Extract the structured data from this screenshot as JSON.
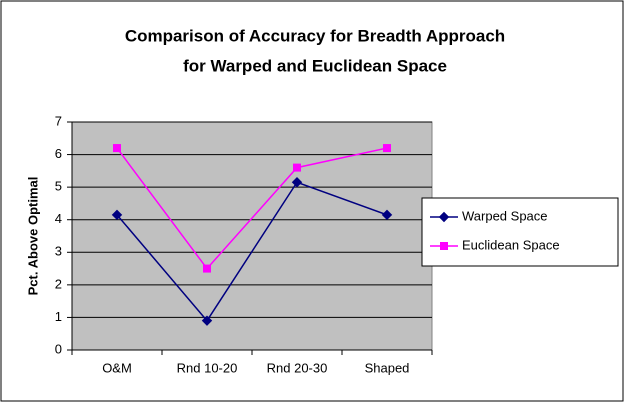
{
  "chart_data": {
    "type": "line",
    "title": [
      "Comparison of Accuracy for Breadth Approach",
      "for Warped and Euclidean Space"
    ],
    "y_label": "Pct. Above Optimal",
    "categories": [
      "O&M",
      "Rnd 10-20",
      "Rnd 20-30",
      "Shaped"
    ],
    "series": [
      {
        "name": "Warped Space",
        "color": "#000080",
        "marker": "diamond",
        "values": [
          4.15,
          0.9,
          5.15,
          4.15
        ]
      },
      {
        "name": "Euclidean Space",
        "color": "#ff00ff",
        "marker": "square",
        "values": [
          6.2,
          2.5,
          5.6,
          6.2
        ]
      }
    ],
    "ylim": [
      0,
      7
    ],
    "yticks": [
      0,
      1,
      2,
      3,
      4,
      5,
      6,
      7
    ],
    "grid": true,
    "plot_background": "#c0c0c0",
    "legend": "right"
  }
}
